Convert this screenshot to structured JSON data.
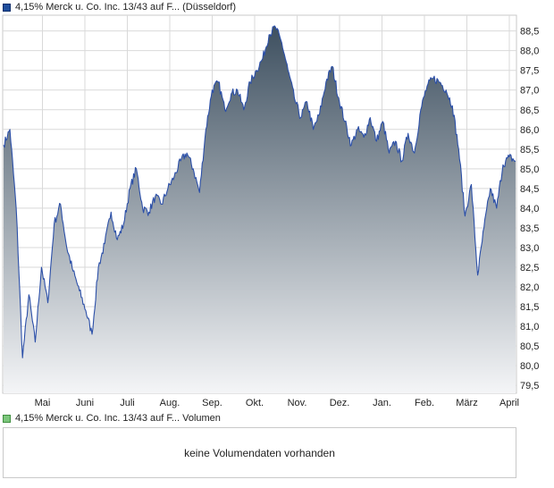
{
  "legend": {
    "price_label": "4,15% Merck u. Co. Inc. 13/43 auf F... (Düsseldorf)",
    "volume_label": "4,15% Merck u. Co. Inc. 13/43 auf F... Volumen"
  },
  "volume_panel": {
    "message": "keine Volumendaten vorhanden"
  },
  "colors": {
    "line": "#2b4fa8",
    "fill_top": "#3e5060",
    "fill_bottom": "#f4f5f7",
    "grid": "#d9d9d9"
  },
  "chart_data": {
    "type": "area",
    "x_axis_labels": [
      "Mai",
      "Juni",
      "Juli",
      "Aug.",
      "Sep.",
      "Okt.",
      "Nov.",
      "Dez.",
      "Jan.",
      "Feb.",
      "März",
      "April"
    ],
    "y_ticks": [
      "79,5",
      "80,0",
      "80,5",
      "81,0",
      "81,5",
      "82,0",
      "82,5",
      "83,0",
      "83,5",
      "84,0",
      "84,5",
      "85,0",
      "85,5",
      "86,0",
      "86,5",
      "87,0",
      "87,5",
      "88,0",
      "88,5"
    ],
    "ylim": [
      79.3,
      88.9
    ],
    "y_axis_position": "right",
    "grid": true,
    "series": [
      {
        "values": [
          85.6,
          86.0,
          84.0,
          80.2,
          81.8,
          80.6,
          82.5,
          81.6,
          83.6,
          84.1,
          83.0,
          82.4,
          81.9,
          81.4,
          80.8,
          82.5,
          83.1,
          83.9,
          83.2,
          83.6,
          84.5,
          85.0,
          84.0,
          83.9,
          84.3,
          84.1,
          84.5,
          84.8,
          85.2,
          85.4,
          85.0,
          84.4,
          86.0,
          87.0,
          87.2,
          86.5,
          86.9,
          87.0,
          86.5,
          87.2,
          87.5,
          87.8,
          88.4,
          88.6,
          88.2,
          87.5,
          86.8,
          86.3,
          86.7,
          86.0,
          86.4,
          87.2,
          87.6,
          86.8,
          86.2,
          85.6,
          86.0,
          85.8,
          86.3,
          85.7,
          86.2,
          85.4,
          85.7,
          85.2,
          85.9,
          85.4,
          86.5,
          87.1,
          87.3,
          87.2,
          87.0,
          86.6,
          85.5,
          83.8,
          84.6,
          82.3,
          83.5,
          84.5,
          84.0,
          85.1,
          85.3,
          85.2
        ],
        "interpolation": "approximate"
      }
    ]
  }
}
